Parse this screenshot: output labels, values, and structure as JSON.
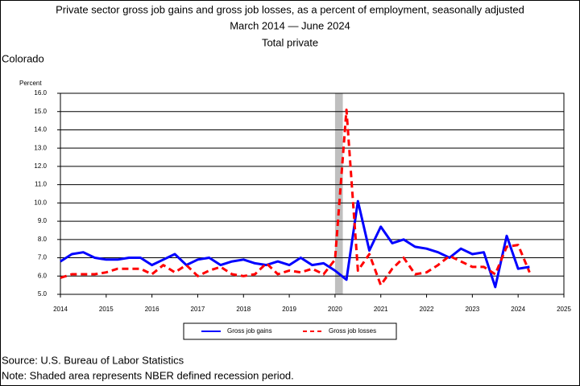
{
  "chart_data": {
    "type": "line",
    "title": "Private sector gross job gains and gross job losses, as a percent of employment, seasonally adjusted",
    "subtitle": "March 2014 — June 2024",
    "series_title": "Total private",
    "region": "Colorado",
    "ylabel": "Percent",
    "source": "Source: U.S. Bureau of Labor Statistics",
    "note": "Note: Shaded area represents NBER defined recession period.",
    "x": [
      2014,
      2014.25,
      2014.5,
      2014.75,
      2015,
      2015.25,
      2015.5,
      2015.75,
      2016,
      2016.25,
      2016.5,
      2016.75,
      2017,
      2017.25,
      2017.5,
      2017.75,
      2018,
      2018.25,
      2018.5,
      2018.75,
      2019,
      2019.25,
      2019.5,
      2019.75,
      2020,
      2020.25,
      2020.5,
      2020.75,
      2021,
      2021.25,
      2021.5,
      2021.75,
      2022,
      2022.25,
      2022.5,
      2022.75,
      2023,
      2023.25,
      2023.5,
      2023.75,
      2024,
      2024.25
    ],
    "series": [
      {
        "name": "Gross job gains",
        "color": "#0000ff",
        "dash": "solid",
        "values": [
          6.8,
          7.2,
          7.3,
          7.0,
          6.9,
          6.9,
          7.0,
          7.0,
          6.6,
          6.9,
          7.2,
          6.6,
          6.9,
          7.0,
          6.6,
          6.8,
          6.9,
          6.7,
          6.6,
          6.8,
          6.6,
          7.0,
          6.6,
          6.7,
          6.3,
          5.8,
          10.1,
          7.4,
          8.7,
          7.8,
          8.0,
          7.6,
          7.5,
          7.3,
          7.0,
          7.5,
          7.2,
          7.3,
          5.4,
          8.2,
          6.4,
          6.5
        ]
      },
      {
        "name": "Gross job losses",
        "color": "#ff0000",
        "dash": "dashed",
        "values": [
          5.9,
          6.1,
          6.1,
          6.1,
          6.2,
          6.4,
          6.4,
          6.4,
          6.1,
          6.6,
          6.2,
          6.6,
          6.0,
          6.3,
          6.5,
          6.1,
          6.0,
          6.1,
          6.7,
          6.1,
          6.3,
          6.2,
          6.4,
          6.1,
          6.9,
          15.1,
          6.3,
          7.2,
          5.5,
          6.4,
          7.0,
          6.1,
          6.2,
          6.6,
          7.1,
          6.8,
          6.5,
          6.5,
          6.1,
          7.6,
          7.7,
          6.2
        ]
      }
    ],
    "shaded_regions": [
      [
        2020.0,
        2020.17
      ]
    ],
    "xlim": [
      2014,
      2025
    ],
    "xticks": [
      2014,
      2015,
      2016,
      2017,
      2018,
      2019,
      2020,
      2021,
      2022,
      2023,
      2024,
      2025
    ],
    "ylim": [
      5,
      16
    ],
    "yticks": [
      {
        "value": 5,
        "label": "5.0"
      },
      {
        "value": 6,
        "label": "6.0"
      },
      {
        "value": 7,
        "label": "7.0"
      },
      {
        "value": 8,
        "label": "8.0"
      },
      {
        "value": 9,
        "label": "9.0"
      },
      {
        "value": 10,
        "label": "10.0"
      },
      {
        "value": 11,
        "label": "11.0"
      },
      {
        "value": 12,
        "label": "12.0"
      },
      {
        "value": 13,
        "label": "13.0"
      },
      {
        "value": 14,
        "label": "14.0"
      },
      {
        "value": 15,
        "label": "15.0"
      },
      {
        "value": 16,
        "label": "16.0"
      }
    ],
    "grid": true,
    "legend": "bottom"
  }
}
